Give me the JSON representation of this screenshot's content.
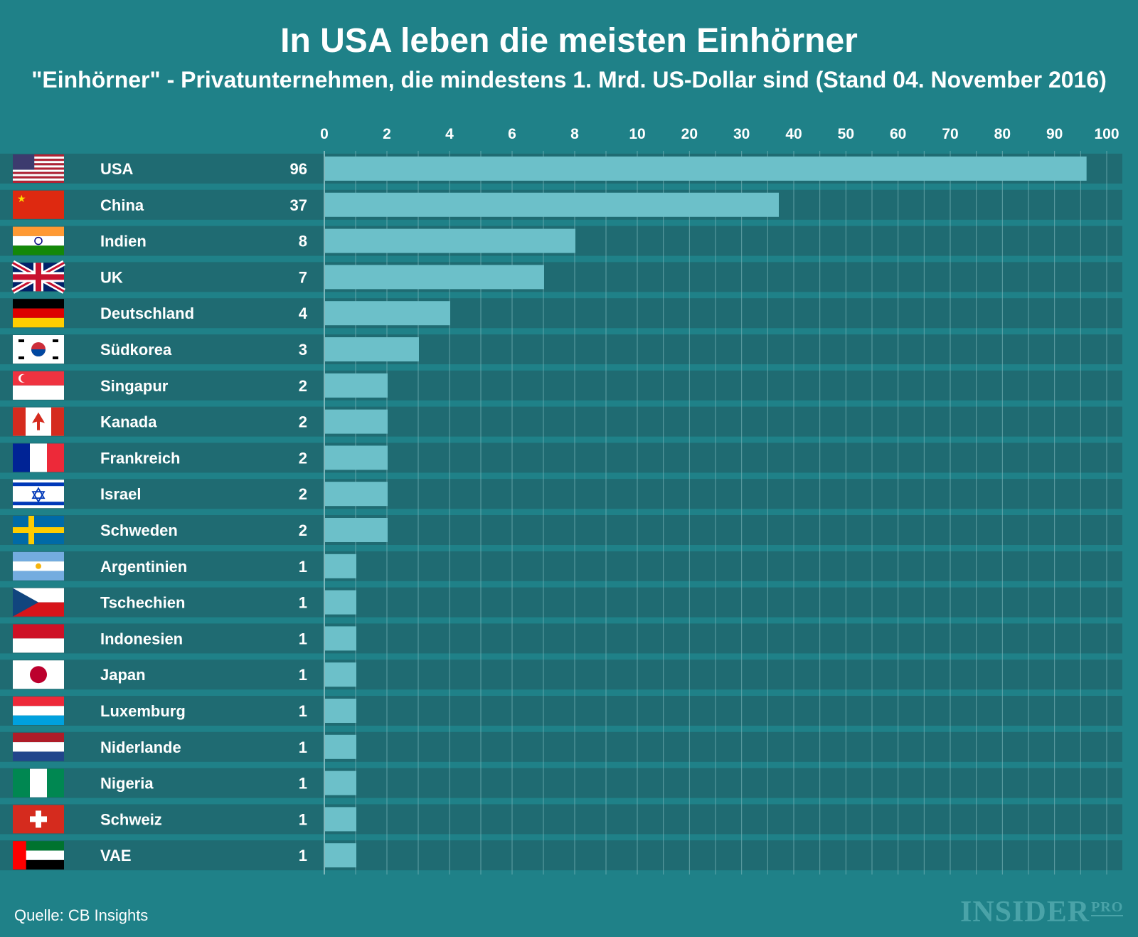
{
  "title": "In USA leben die meisten Einhörner",
  "subtitle": "\"Einhörner\" - Privatunternehmen, die mindestens 1. Mrd. US-Dollar sind (Stand 04. November 2016)",
  "source": "Quelle: CB Insights",
  "logo": {
    "main": "INSIDER",
    "suffix": "PRO"
  },
  "colors": {
    "background": "#1f8188",
    "row_band": "#1f6b72",
    "bar": "#6cc0c9",
    "grid": "#7fb7bb"
  },
  "chart_data": {
    "type": "bar",
    "orientation": "horizontal",
    "title": "In USA leben die meisten Einhörner",
    "subtitle": "\"Einhörner\" - Privatunternehmen, die mindestens 1. Mrd. US-Dollar sind (Stand 04. November 2016)",
    "xlabel": "",
    "ylabel": "",
    "x_scale": "piecewise-linear: 0–8 in steps of 2, then 10–100 in steps of 10",
    "x_ticks": [
      "0",
      "2",
      "4",
      "6",
      "8",
      "10",
      "20",
      "30",
      "40",
      "50",
      "60",
      "70",
      "80",
      "90",
      "100"
    ],
    "xlim": [
      0,
      100
    ],
    "grid": true,
    "legend": "none",
    "categories": [
      "USA",
      "China",
      "Indien",
      "UK",
      "Deutschland",
      "Südkorea",
      "Singapur",
      "Kanada",
      "Frankreich",
      "Israel",
      "Schweden",
      "Argentinien",
      "Tschechien",
      "Indonesien",
      "Japan",
      "Luxemburg",
      "Niderlande",
      "Nigeria",
      "Schweiz",
      "VAE"
    ],
    "flags": [
      "usa-flag-icon",
      "china-flag-icon",
      "india-flag-icon",
      "uk-flag-icon",
      "germany-flag-icon",
      "south-korea-flag-icon",
      "singapore-flag-icon",
      "canada-flag-icon",
      "france-flag-icon",
      "israel-flag-icon",
      "sweden-flag-icon",
      "argentina-flag-icon",
      "czechia-flag-icon",
      "indonesia-flag-icon",
      "japan-flag-icon",
      "luxembourg-flag-icon",
      "netherlands-flag-icon",
      "nigeria-flag-icon",
      "switzerland-flag-icon",
      "uae-flag-icon"
    ],
    "values": [
      96,
      37,
      8,
      7,
      4,
      3,
      2,
      2,
      2,
      2,
      2,
      1,
      1,
      1,
      1,
      1,
      1,
      1,
      1,
      1
    ]
  }
}
